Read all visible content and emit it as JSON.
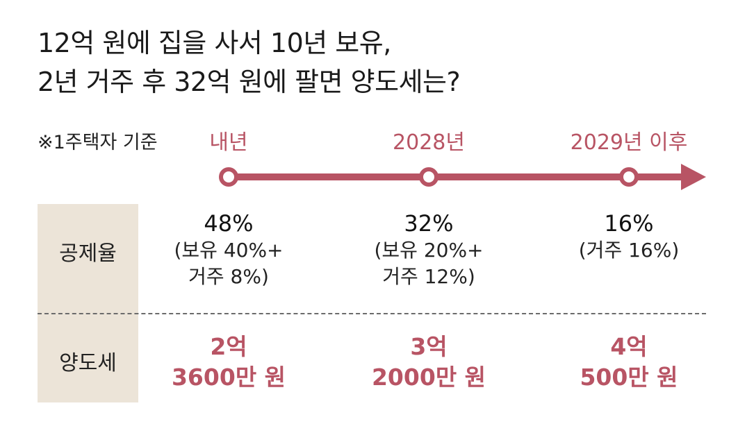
{
  "title": {
    "line1": "12억 원에 집을 사서 10년 보유,",
    "line2": "2년 거주 후 32억 원에 팔면 양도세는?"
  },
  "basis_note": "※1주택자 기준",
  "accent_color": "#b85464",
  "timeline": [
    {
      "label": "내년"
    },
    {
      "label": "2028년"
    },
    {
      "label": "2029년 이후"
    }
  ],
  "row_labels": {
    "deduction": "공제율",
    "tax": "양도세"
  },
  "columns": [
    {
      "rate": "48%",
      "detail1": "(보유 40%+",
      "detail2": "거주 8%)",
      "tax1": "2억",
      "tax2": "3600만 원"
    },
    {
      "rate": "32%",
      "detail1": "(보유 20%+",
      "detail2": "거주 12%)",
      "tax1": "3억",
      "tax2": "2000만 원"
    },
    {
      "rate": "16%",
      "detail1": "(거주 16%)",
      "detail2": "",
      "tax1": "4억",
      "tax2": "500만 원"
    }
  ]
}
